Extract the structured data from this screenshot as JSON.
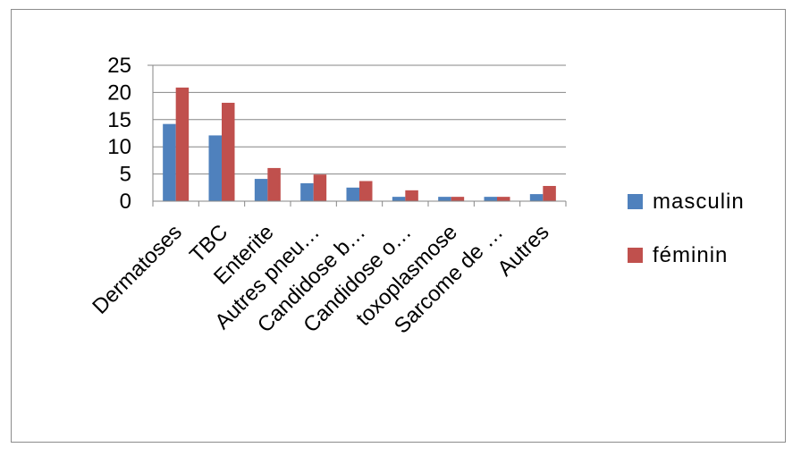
{
  "chart_data": {
    "type": "bar",
    "title": "",
    "xlabel": "",
    "ylabel": "",
    "ylim": [
      0,
      25
    ],
    "yticks": [
      "0",
      "5",
      "10",
      "15",
      "20",
      "25"
    ],
    "grid": true,
    "legend_position": "right",
    "categories": [
      "Dermatoses",
      "TBC",
      "Enterite",
      "Autres pneu…",
      "Candidose b…",
      "Candidose o…",
      "toxoplasmose",
      "Sarcome de …",
      "Autres"
    ],
    "series": [
      {
        "name": "masculin",
        "color": "#4f81bd",
        "values": [
          14.2,
          12.1,
          4.1,
          3.3,
          2.5,
          0.8,
          0.8,
          0.8,
          1.3
        ]
      },
      {
        "name": "féminin",
        "color": "#c0504d",
        "values": [
          20.9,
          18.1,
          6.1,
          4.9,
          3.7,
          2.0,
          0.8,
          0.8,
          2.8
        ]
      }
    ]
  }
}
